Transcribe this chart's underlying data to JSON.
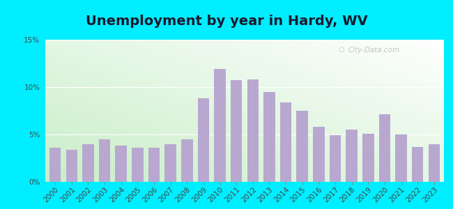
{
  "title": "Unemployment by year in Hardy, WV",
  "years": [
    2000,
    2001,
    2002,
    2003,
    2004,
    2005,
    2006,
    2007,
    2008,
    2009,
    2010,
    2011,
    2012,
    2013,
    2014,
    2015,
    2016,
    2017,
    2018,
    2019,
    2020,
    2021,
    2022,
    2023
  ],
  "values": [
    3.6,
    3.4,
    4.0,
    4.5,
    3.8,
    3.6,
    3.6,
    4.0,
    4.5,
    8.8,
    11.9,
    10.7,
    10.8,
    9.5,
    8.4,
    7.5,
    5.8,
    4.9,
    5.5,
    5.1,
    7.1,
    5.0,
    3.7,
    4.0
  ],
  "bar_color": "#b8a8d0",
  "bar_edgecolor": "none",
  "ylim": [
    0,
    15
  ],
  "yticks": [
    0,
    5,
    10,
    15
  ],
  "ytick_labels": [
    "0%",
    "5%",
    "10%",
    "15%"
  ],
  "background_outer": "#00eeff",
  "grid_color": "#ffffff",
  "title_fontsize": 14,
  "tick_fontsize": 7.5,
  "watermark": "City-Data.com",
  "bg_colors": [
    "#c8eec8",
    "#eafaea",
    "#f5fff5",
    "#ffffff"
  ],
  "title_color": "#1a1a2e"
}
